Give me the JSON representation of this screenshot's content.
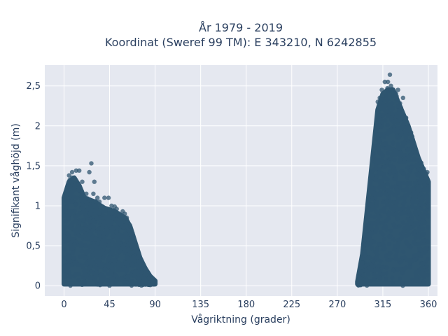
{
  "chart_data": {
    "type": "scatter",
    "title_line1": "År 1979 - 2019",
    "title_line2": "Koordinat (Sweref 99 TM): E 343210, N 6242855",
    "xlabel": "Vågriktning (grader)",
    "ylabel": "Signifikant våghöjd (m)",
    "xlim": [
      -19,
      369
    ],
    "ylim": [
      -0.13,
      2.76
    ],
    "x_ticks": [
      0,
      45,
      90,
      135,
      180,
      225,
      270,
      315,
      360
    ],
    "x_tick_labels": [
      "0",
      "45",
      "90",
      "135",
      "180",
      "225",
      "270",
      "315",
      "360"
    ],
    "y_ticks": [
      0,
      0.5,
      1,
      1.5,
      2,
      2.5
    ],
    "y_tick_labels": [
      "0",
      "0,5",
      "1",
      "1,5",
      "2",
      "2,5"
    ],
    "grid": true,
    "marker_color": "#2f5670",
    "plot_bgcolor": "#e5e8f0",
    "clusters": [
      {
        "x_range": [
          0,
          90
        ],
        "upper_envelope": [
          [
            0,
            1.1
          ],
          [
            5,
            1.3
          ],
          [
            10,
            1.35
          ],
          [
            15,
            1.25
          ],
          [
            20,
            1.1
          ],
          [
            30,
            1.05
          ],
          [
            40,
            0.97
          ],
          [
            50,
            0.93
          ],
          [
            60,
            0.85
          ],
          [
            65,
            0.75
          ],
          [
            70,
            0.55
          ],
          [
            75,
            0.35
          ],
          [
            80,
            0.22
          ],
          [
            85,
            0.12
          ],
          [
            90,
            0.06
          ]
        ]
      },
      {
        "x_range": [
          290,
          360
        ],
        "upper_envelope": [
          [
            290,
            0.05
          ],
          [
            295,
            0.4
          ],
          [
            300,
            1.0
          ],
          [
            305,
            1.6
          ],
          [
            310,
            2.2
          ],
          [
            315,
            2.4
          ],
          [
            320,
            2.45
          ],
          [
            325,
            2.45
          ],
          [
            330,
            2.3
          ],
          [
            335,
            2.15
          ],
          [
            340,
            2.0
          ],
          [
            345,
            1.8
          ],
          [
            350,
            1.6
          ],
          [
            355,
            1.45
          ],
          [
            360,
            1.3
          ]
        ]
      }
    ],
    "outliers": [
      {
        "x": 3,
        "y": 1.2
      },
      {
        "x": 5,
        "y": 1.38
      },
      {
        "x": 8,
        "y": 1.42
      },
      {
        "x": 12,
        "y": 1.44
      },
      {
        "x": 15,
        "y": 1.44
      },
      {
        "x": 18,
        "y": 1.3
      },
      {
        "x": 25,
        "y": 1.42
      },
      {
        "x": 27,
        "y": 1.53
      },
      {
        "x": 22,
        "y": 1.15
      },
      {
        "x": 29,
        "y": 1.15
      },
      {
        "x": 30,
        "y": 1.3
      },
      {
        "x": 33,
        "y": 1.1
      },
      {
        "x": 35,
        "y": 1.05
      },
      {
        "x": 40,
        "y": 1.1
      },
      {
        "x": 44,
        "y": 1.1
      },
      {
        "x": 47,
        "y": 1.0
      },
      {
        "x": 50,
        "y": 0.99
      },
      {
        "x": 52,
        "y": 0.96
      },
      {
        "x": 58,
        "y": 0.93
      },
      {
        "x": 60,
        "y": 0.9
      },
      {
        "x": 62,
        "y": 0.85
      },
      {
        "x": 88,
        "y": 0.05
      },
      {
        "x": 310,
        "y": 2.3
      },
      {
        "x": 312,
        "y": 2.35
      },
      {
        "x": 314,
        "y": 2.45
      },
      {
        "x": 317,
        "y": 2.55
      },
      {
        "x": 320,
        "y": 2.55
      },
      {
        "x": 322,
        "y": 2.64
      },
      {
        "x": 323,
        "y": 2.5
      },
      {
        "x": 328,
        "y": 2.4
      },
      {
        "x": 330,
        "y": 2.45
      },
      {
        "x": 333,
        "y": 2.2
      },
      {
        "x": 335,
        "y": 2.35
      },
      {
        "x": 338,
        "y": 2.1
      },
      {
        "x": 340,
        "y": 2.0
      },
      {
        "x": 342,
        "y": 1.9
      },
      {
        "x": 345,
        "y": 1.7
      },
      {
        "x": 348,
        "y": 1.5
      },
      {
        "x": 352,
        "y": 1.45
      },
      {
        "x": 355,
        "y": 1.4
      },
      {
        "x": 358,
        "y": 1.4
      },
      {
        "x": 359,
        "y": 1.42
      }
    ]
  }
}
